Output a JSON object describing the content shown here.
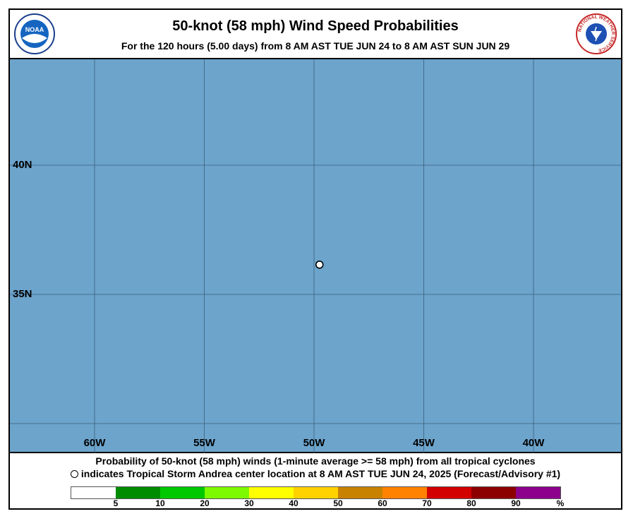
{
  "header": {
    "title": "50-knot (58 mph) Wind Speed Probabilities",
    "subtitle": "For the 120 hours (5.00 days) from 8 AM AST TUE JUN 24 to 8 AM AST SUN JUN 29",
    "noaa_logo_text": "NOAA",
    "nws_logo_text": "NATIONAL WEATHER SERVICE"
  },
  "map": {
    "background_color": "#6ca4cc",
    "grid_color": "#3e5f78",
    "lat_labels": [
      "40N",
      "35N"
    ],
    "lon_labels": [
      "60W",
      "55W",
      "50W",
      "45W",
      "40W"
    ],
    "storm_center": {
      "lon": -49.75,
      "lat": 36.15,
      "marker": "open-circle"
    }
  },
  "footer": {
    "line1": "Probability of 50-knot (58 mph) winds (1-minute average >= 58 mph) from all tropical cyclones",
    "line2": "indicates Tropical Storm Andrea center location at 8 AM AST TUE JUN 24, 2025 (Forecast/Advisory #1)"
  },
  "legend": {
    "colors": [
      "#ffffff",
      "#008c00",
      "#00c800",
      "#7dfa00",
      "#ffff00",
      "#ffd200",
      "#c88200",
      "#ff8200",
      "#d20000",
      "#8c0000",
      "#8c008c"
    ],
    "ticks": [
      "5",
      "10",
      "20",
      "30",
      "40",
      "50",
      "60",
      "70",
      "80",
      "90"
    ],
    "unit": "%"
  }
}
